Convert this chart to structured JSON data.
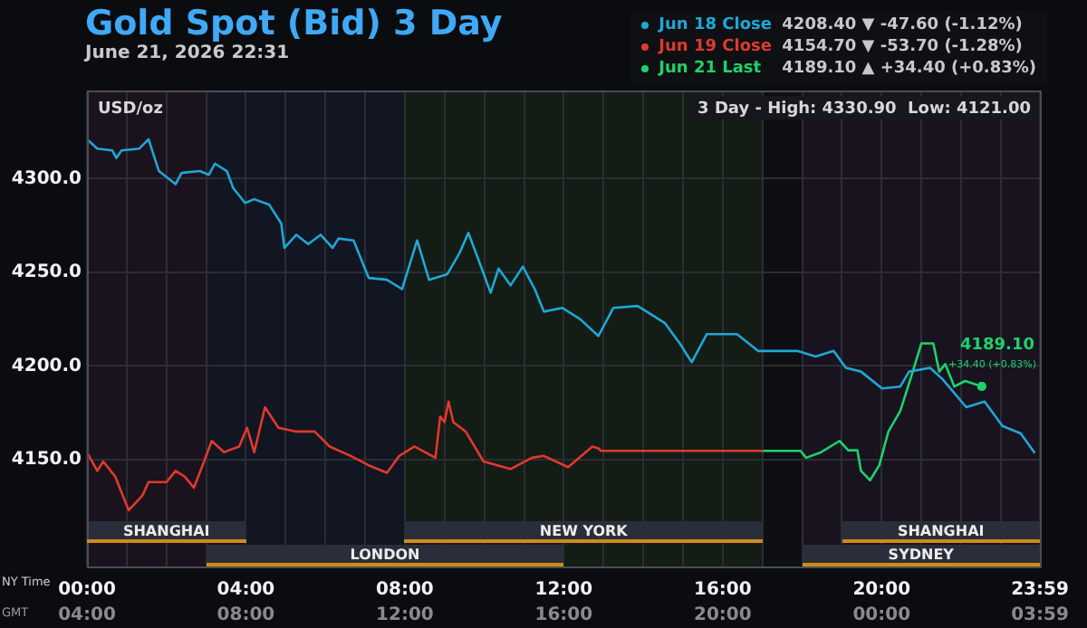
{
  "chart_data": {
    "type": "line",
    "title": "Gold Spot (Bid) 3 Day",
    "subtitle": "June 21, 2026 22:31",
    "xlabel": "NY Time",
    "x2label": "GMT",
    "ylabel": "USD/oz",
    "legend": "top right",
    "grid": true,
    "xlim": [
      0,
      23.983
    ],
    "xticks": [
      {
        "value": 0,
        "label": "00:00"
      },
      {
        "value": 1,
        "label": null
      },
      {
        "value": 2,
        "label": null
      },
      {
        "value": 3,
        "label": null
      },
      {
        "value": 4,
        "label": "04:00"
      },
      {
        "value": 5,
        "label": null
      },
      {
        "value": 6,
        "label": null
      },
      {
        "value": 7,
        "label": null
      },
      {
        "value": 8,
        "label": "08:00"
      },
      {
        "value": 9,
        "label": null
      },
      {
        "value": 10,
        "label": null
      },
      {
        "value": 11,
        "label": null
      },
      {
        "value": 12,
        "label": "12:00"
      },
      {
        "value": 13,
        "label": null
      },
      {
        "value": 14,
        "label": null
      },
      {
        "value": 15,
        "label": null
      },
      {
        "value": 16,
        "label": "16:00"
      },
      {
        "value": 17,
        "label": null
      },
      {
        "value": 18,
        "label": null
      },
      {
        "value": 19,
        "label": null
      },
      {
        "value": 20,
        "label": "20:00"
      },
      {
        "value": 21,
        "label": null
      },
      {
        "value": 22,
        "label": null
      },
      {
        "value": 23,
        "label": null
      },
      {
        "value": 23.983,
        "label": "23:59"
      }
    ],
    "x2lim": [
      "2026-06-21T04:00",
      "2026-06-22T03:59"
    ],
    "x2ticks": [
      {
        "value": "2026-06-21T04:00",
        "label": "04:00"
      },
      {
        "value": "2026-06-21T08:00",
        "label": "08:00"
      },
      {
        "value": "2026-06-21T12:00",
        "label": "12:00"
      },
      {
        "value": "2026-06-21T16:00",
        "label": "16:00"
      },
      {
        "value": "2026-06-21T20:00",
        "label": "20:00"
      },
      {
        "value": "2026-06-22T00:00",
        "label": "00:00"
      },
      {
        "value": "2026-06-22T03:59",
        "label": "03:59"
      }
    ],
    "ylim": [
      4093,
      4347
    ],
    "yticks": [
      {
        "value": 4150,
        "label": "4150.0"
      },
      {
        "value": 4200,
        "label": "4200.0"
      },
      {
        "value": 4250,
        "label": "4250.0"
      },
      {
        "value": 4300,
        "label": "4300.0"
      }
    ],
    "series": [
      {
        "name": "Jun 18 Close",
        "color": "#1fa7d6",
        "x": [
          0,
          0.26,
          0.64,
          0.74,
          0.87,
          1.32,
          1.55,
          1.81,
          2.23,
          2.38,
          2.84,
          3.07,
          3.22,
          3.52,
          3.68,
          3.98,
          4.21,
          4.59,
          4.89,
          4.97,
          5.27,
          5.57,
          5.88,
          6.18,
          6.33,
          6.71,
          7.09,
          7.55,
          7.93,
          8.31,
          8.61,
          9.07,
          9.37,
          9.6,
          9.83,
          10.16,
          10.36,
          10.66,
          10.97,
          11.27,
          11.5,
          11.96,
          12.41,
          12.87,
          13.25,
          13.86,
          14.54,
          14.92,
          15.22,
          15.6,
          16.36,
          16.89,
          17.88,
          18.34,
          18.79,
          19.1,
          19.48,
          20.01,
          20.47,
          20.69,
          21.22,
          21.53,
          22.13,
          22.59,
          23.04,
          23.5,
          23.84
        ],
        "values": [
          4321,
          4316,
          4315,
          4311,
          4315,
          4316,
          4321,
          4304,
          4297,
          4303,
          4304,
          4302,
          4308,
          4304,
          4295,
          4287,
          4289,
          4286,
          4276,
          4263,
          4270,
          4265,
          4270,
          4263,
          4268,
          4267,
          4247,
          4246,
          4241,
          4267,
          4246,
          4249,
          4260,
          4271,
          4258,
          4239,
          4252,
          4243,
          4253,
          4241,
          4229,
          4231,
          4225,
          4216,
          4231,
          4232,
          4223,
          4212,
          4202,
          4217,
          4217,
          4208,
          4208,
          4205,
          4208,
          4199,
          4197,
          4188,
          4189,
          4197,
          4199,
          4193,
          4178,
          4181,
          4168,
          4164,
          4154
        ]
      },
      {
        "name": "Jun 19 Close",
        "color": "#e0392e",
        "x": [
          0,
          0.26,
          0.41,
          0.71,
          1.05,
          1.4,
          1.55,
          2.0,
          2.23,
          2.46,
          2.69,
          2.91,
          3.14,
          3.45,
          3.83,
          4.03,
          4.21,
          4.48,
          4.82,
          5.27,
          5.73,
          6.11,
          6.64,
          7.09,
          7.55,
          7.86,
          8.24,
          8.77,
          8.89,
          9.0,
          9.1,
          9.22,
          9.53,
          9.98,
          10.66,
          11.2,
          11.5,
          12.11,
          12.72,
          12.87,
          12.94,
          17.0
        ],
        "values": [
          4154,
          4144,
          4149,
          4141,
          4123,
          4131,
          4138,
          4138,
          4144,
          4141,
          4135,
          4147,
          4160,
          4154,
          4157,
          4167,
          4154,
          4178,
          4167,
          4165,
          4165,
          4157,
          4152,
          4147,
          4143,
          4152,
          4157,
          4151,
          4173,
          4170,
          4181,
          4170,
          4165,
          4149,
          4145,
          4151,
          4152,
          4146,
          4157,
          4156,
          4154.7,
          4154.7
        ]
      },
      {
        "name": "Jun 21 Last",
        "color": "#1fd16a",
        "x": [
          17.0,
          17.96,
          18.1,
          18.48,
          18.94,
          19.16,
          19.39,
          19.48,
          19.71,
          19.94,
          20.17,
          20.47,
          20.77,
          21.0,
          21.3,
          21.45,
          21.6,
          21.83,
          22.1,
          22.52
        ],
        "values": [
          4154.7,
          4154.7,
          4151,
          4154,
          4160,
          4155,
          4155,
          4144,
          4139,
          4147,
          4165,
          4176,
          4196,
          4212,
          4212,
          4197,
          4201,
          4189,
          4192,
          4189.1
        ]
      }
    ],
    "bands": [
      {
        "axis": "x",
        "from": 0,
        "to": 3,
        "color": "#1a131d"
      },
      {
        "axis": "x",
        "from": 3,
        "to": 8,
        "color": "#111622"
      },
      {
        "axis": "x",
        "from": 8,
        "to": 17,
        "color": "#141c16"
      },
      {
        "axis": "x",
        "from": 18,
        "to": 23.983,
        "color": "#18131f"
      },
      {
        "axis": "x",
        "from": 0,
        "to": 4,
        "label": "SHANGHAI",
        "color": "#2a2e3a"
      },
      {
        "axis": "x",
        "from": 3,
        "to": 12,
        "label": "LONDON",
        "color": "#2a2e3a"
      },
      {
        "axis": "x",
        "from": 8,
        "to": 17,
        "label": "NEW YORK",
        "color": "#2a2e3a"
      },
      {
        "axis": "x",
        "from": 19,
        "to": 23.983,
        "label": "SHANGHAI",
        "color": "#2a2e3a"
      },
      {
        "axis": "x",
        "from": 18,
        "to": 23.983,
        "label": "SYDNEY",
        "color": "#2a2e3a"
      }
    ],
    "annotations": [
      "4208.40 ▼ -47.60 (-1.12%)",
      "4154.70 ▼ -53.70 (-1.28%)",
      "4189.10 ▲ +34.40 (+0.83%)",
      "3 Day - High: 4330.90  Low: 4121.00",
      {
        "text": "4189.10",
        "x": 22.52,
        "y": 4189.1
      },
      {
        "text": "+34.40 (+0.83%)",
        "x": 22.52,
        "y": 4189.1
      }
    ]
  }
}
